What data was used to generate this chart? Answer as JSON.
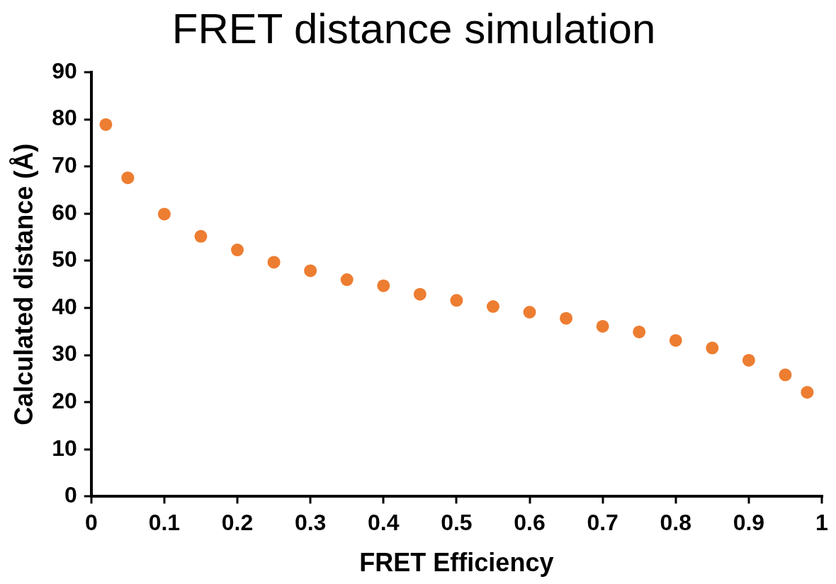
{
  "chart_data": {
    "type": "scatter",
    "title": "FRET distance simulation",
    "xlabel": "FRET Efficiency",
    "ylabel": "Calculated distance (Å)",
    "x": [
      0.02,
      0.05,
      0.1,
      0.15,
      0.2,
      0.25,
      0.3,
      0.35,
      0.4,
      0.45,
      0.5,
      0.55,
      0.6,
      0.65,
      0.7,
      0.75,
      0.8,
      0.85,
      0.9,
      0.95,
      0.98
    ],
    "series": [
      {
        "color": "#ed7d31",
        "values": [
          78.9,
          67.6,
          59.9,
          55.2,
          52.3,
          49.7,
          47.9,
          46.0,
          44.7,
          42.9,
          41.6,
          40.3,
          39.1,
          37.8,
          36.1,
          34.9,
          33.1,
          31.5,
          28.9,
          25.8,
          22.1
        ]
      }
    ],
    "xlim": [
      0,
      1
    ],
    "xticks": [
      0,
      0.1,
      0.2,
      0.3,
      0.4,
      0.5,
      0.6,
      0.7,
      0.8,
      0.9,
      1
    ],
    "ylim": [
      0,
      90
    ],
    "yticks": [
      0,
      10,
      20,
      30,
      40,
      50,
      60,
      70,
      80,
      90
    ],
    "grid": false,
    "legend": false,
    "marker": "circle"
  }
}
